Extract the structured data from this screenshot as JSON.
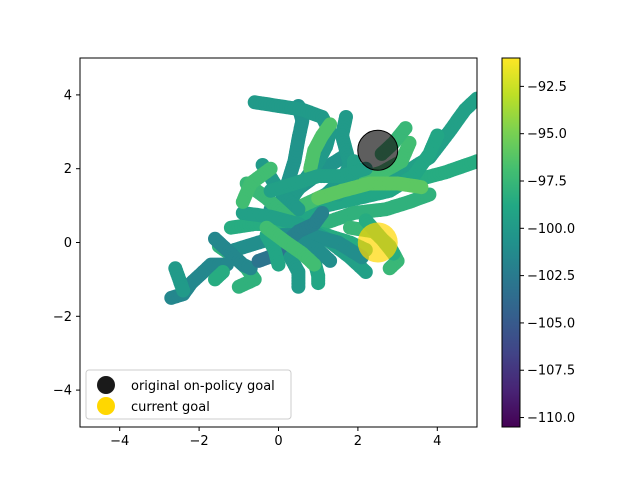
{
  "chart_data": {
    "type": "scatter",
    "xlim": [
      -5,
      5
    ],
    "ylim": [
      -5,
      5
    ],
    "x_ticks": [
      -4,
      -2,
      0,
      2,
      4
    ],
    "x_tick_labels": [
      "−4",
      "−2",
      "0",
      "2",
      "4"
    ],
    "y_ticks": [
      -4,
      -2,
      0,
      2,
      4
    ],
    "y_tick_labels": [
      "−4",
      "−2",
      "0",
      "2",
      "4"
    ],
    "grid": false,
    "colormap": "viridis",
    "colorbar": {
      "range": [
        -110.5,
        -91.0
      ],
      "ticks": [
        -92.5,
        -95.0,
        -97.5,
        -100.0,
        -102.5,
        -105.0,
        -107.5,
        -110.0
      ],
      "tick_labels": [
        "−92.5",
        "−95.0",
        "−97.5",
        "−100.0",
        "−102.5",
        "−105.0",
        "−107.5",
        "−110.0"
      ]
    },
    "trajectories": [
      {
        "value": -99.5,
        "points": [
          [
            0.2,
            0.4
          ],
          [
            0.8,
            0.8
          ],
          [
            1.4,
            1.2
          ],
          [
            2.0,
            1.5
          ],
          [
            2.6,
            1.7
          ],
          [
            3.2,
            1.9
          ],
          [
            3.8,
            2.3
          ],
          [
            4.3,
            3.0
          ],
          [
            4.7,
            3.6
          ],
          [
            5.0,
            3.9
          ]
        ]
      },
      {
        "value": -98.5,
        "points": [
          [
            0.0,
            0.3
          ],
          [
            0.7,
            0.7
          ],
          [
            1.3,
            1.1
          ],
          [
            2.0,
            1.3
          ],
          [
            2.8,
            1.5
          ],
          [
            3.5,
            1.7
          ],
          [
            4.2,
            1.9
          ],
          [
            5.0,
            2.2
          ]
        ]
      },
      {
        "value": -99.0,
        "points": [
          [
            0.5,
            0.6
          ],
          [
            1.2,
            1.0
          ],
          [
            2.0,
            1.2
          ],
          [
            2.8,
            1.4
          ],
          [
            3.4,
            1.8
          ],
          [
            3.8,
            2.4
          ],
          [
            4.0,
            2.9
          ]
        ]
      },
      {
        "value": -98.0,
        "points": [
          [
            0.3,
            0.2
          ],
          [
            1.1,
            0.5
          ],
          [
            1.9,
            0.8
          ],
          [
            2.7,
            0.9
          ],
          [
            3.3,
            1.1
          ],
          [
            3.8,
            1.3
          ]
        ]
      },
      {
        "value": -97.0,
        "points": [
          [
            0.4,
            0.9
          ],
          [
            1.2,
            1.3
          ],
          [
            2.0,
            1.7
          ],
          [
            2.6,
            1.9
          ],
          [
            3.1,
            2.2
          ],
          [
            3.3,
            2.7
          ]
        ]
      },
      {
        "value": -100.5,
        "points": [
          [
            -0.2,
            0.9
          ],
          [
            0.3,
            1.3
          ],
          [
            0.8,
            1.7
          ],
          [
            1.3,
            2.1
          ],
          [
            1.6,
            2.3
          ]
        ]
      },
      {
        "value": -100.5,
        "points": [
          [
            0.0,
            0.8
          ],
          [
            0.2,
            1.5
          ],
          [
            0.4,
            2.2
          ],
          [
            0.5,
            2.8
          ],
          [
            0.6,
            3.3
          ],
          [
            0.5,
            3.7
          ]
        ]
      },
      {
        "value": -100.0,
        "points": [
          [
            -0.6,
            3.8
          ],
          [
            0.0,
            3.7
          ],
          [
            0.6,
            3.6
          ],
          [
            1.1,
            3.4
          ],
          [
            1.3,
            3.0
          ],
          [
            1.2,
            2.6
          ],
          [
            1.0,
            2.2
          ],
          [
            0.6,
            1.6
          ],
          [
            0.2,
            1.0
          ],
          [
            -0.1,
            0.6
          ]
        ]
      },
      {
        "value": -100.0,
        "points": [
          [
            1.7,
            3.4
          ],
          [
            1.6,
            2.9
          ],
          [
            1.7,
            2.5
          ],
          [
            1.8,
            2.1
          ],
          [
            1.6,
            1.7
          ],
          [
            1.2,
            1.3
          ]
        ]
      },
      {
        "value": -99.5,
        "points": [
          [
            1.9,
            2.2
          ],
          [
            1.9,
            1.9
          ],
          [
            1.8,
            1.6
          ],
          [
            1.5,
            1.3
          ]
        ]
      },
      {
        "value": -100.0,
        "points": [
          [
            -0.4,
            2.1
          ],
          [
            -0.1,
            1.6
          ],
          [
            0.2,
            1.2
          ],
          [
            0.5,
            0.9
          ]
        ]
      },
      {
        "value": -97.5,
        "points": [
          [
            -0.8,
            1.6
          ],
          [
            -0.3,
            1.2
          ],
          [
            0.1,
            0.8
          ],
          [
            0.4,
            0.5
          ]
        ]
      },
      {
        "value": -98.5,
        "points": [
          [
            -1.2,
            0.4
          ],
          [
            -0.6,
            0.5
          ],
          [
            0.0,
            0.5
          ],
          [
            0.6,
            0.4
          ],
          [
            1.2,
            0.2
          ],
          [
            1.8,
            0.0
          ],
          [
            2.2,
            -0.2
          ]
        ]
      },
      {
        "value": -99.5,
        "points": [
          [
            -0.9,
            0.8
          ],
          [
            -0.2,
            0.7
          ],
          [
            0.5,
            0.5
          ],
          [
            1.2,
            0.1
          ],
          [
            1.8,
            -0.4
          ],
          [
            2.2,
            -0.8
          ]
        ]
      },
      {
        "value": -101.0,
        "points": [
          [
            -1.1,
            -0.2
          ],
          [
            -0.5,
            0.0
          ],
          [
            0.1,
            0.2
          ],
          [
            0.8,
            0.2
          ],
          [
            1.5,
            0.0
          ],
          [
            2.1,
            -0.4
          ]
        ]
      },
      {
        "value": -97.5,
        "points": [
          [
            1.8,
            0.4
          ],
          [
            2.4,
            0.3
          ],
          [
            2.8,
            -0.1
          ],
          [
            3.0,
            -0.5
          ],
          [
            2.8,
            -0.7
          ]
        ]
      },
      {
        "value": -98.5,
        "points": [
          [
            2.2,
            0.6
          ],
          [
            2.6,
            0.1
          ],
          [
            2.9,
            -0.3
          ]
        ]
      },
      {
        "value": -98.0,
        "points": [
          [
            -1.5,
            -0.1
          ],
          [
            -1.1,
            -0.4
          ],
          [
            -0.8,
            -0.7
          ],
          [
            -0.6,
            -1.0
          ],
          [
            -1.0,
            -1.2
          ]
        ]
      },
      {
        "value": -101.5,
        "points": [
          [
            -1.6,
            0.1
          ],
          [
            -1.2,
            -0.3
          ],
          [
            -0.9,
            -0.6
          ],
          [
            -0.7,
            -0.7
          ]
        ]
      },
      {
        "value": -103.0,
        "points": [
          [
            -0.5,
            -0.5
          ],
          [
            0.0,
            -0.3
          ],
          [
            0.4,
            -0.1
          ],
          [
            0.8,
            -0.3
          ]
        ]
      },
      {
        "value": -100.0,
        "points": [
          [
            0.3,
            -0.4
          ],
          [
            0.5,
            -0.8
          ],
          [
            0.5,
            -1.2
          ]
        ]
      },
      {
        "value": -99.0,
        "points": [
          [
            0.9,
            -0.5
          ],
          [
            1.0,
            -0.9
          ],
          [
            1.0,
            -1.1
          ]
        ]
      },
      {
        "value": -101.0,
        "points": [
          [
            0.6,
            0.0
          ],
          [
            1.0,
            -0.2
          ],
          [
            1.3,
            -0.5
          ]
        ]
      },
      {
        "value": -99.0,
        "points": [
          [
            -0.3,
            0.2
          ],
          [
            -0.1,
            -0.2
          ],
          [
            0.0,
            -0.6
          ]
        ]
      },
      {
        "value": -101.5,
        "points": [
          [
            -2.7,
            -1.5
          ],
          [
            -2.4,
            -1.4
          ],
          [
            -2.2,
            -1.1
          ],
          [
            -1.9,
            -0.8
          ],
          [
            -1.7,
            -0.6
          ],
          [
            -1.3,
            -0.6
          ]
        ]
      },
      {
        "value": -100.0,
        "points": [
          [
            -2.6,
            -0.7
          ],
          [
            -2.5,
            -1.0
          ],
          [
            -2.4,
            -1.3
          ]
        ]
      },
      {
        "value": -98.5,
        "points": [
          [
            -1.4,
            -0.8
          ],
          [
            -1.6,
            -1.0
          ]
        ]
      },
      {
        "value": -97.5,
        "points": [
          [
            2.6,
            2.4
          ],
          [
            2.9,
            2.7
          ],
          [
            3.2,
            3.1
          ]
        ]
      },
      {
        "value": -96.5,
        "points": [
          [
            0.8,
            2.0
          ],
          [
            0.9,
            2.5
          ],
          [
            1.1,
            2.9
          ],
          [
            1.3,
            3.2
          ]
        ]
      },
      {
        "value": -97.0,
        "points": [
          [
            -0.2,
            2.0
          ],
          [
            -0.7,
            1.6
          ],
          [
            -0.9,
            1.1
          ]
        ]
      },
      {
        "value": -102.0,
        "points": [
          [
            0.2,
            0.0
          ],
          [
            0.5,
            0.3
          ],
          [
            0.9,
            0.5
          ],
          [
            1.1,
            0.8
          ]
        ]
      },
      {
        "value": -99.5,
        "points": [
          [
            -0.2,
            1.4
          ],
          [
            0.4,
            1.6
          ],
          [
            1.0,
            1.8
          ],
          [
            1.6,
            1.8
          ],
          [
            2.2,
            2.0
          ]
        ]
      },
      {
        "value": -96.0,
        "points": [
          [
            1.0,
            1.2
          ],
          [
            1.6,
            1.4
          ],
          [
            2.3,
            1.6
          ],
          [
            3.0,
            1.6
          ],
          [
            3.6,
            1.5
          ]
        ]
      },
      {
        "value": -97.0,
        "points": [
          [
            -0.3,
            0.4
          ],
          [
            0.2,
            0.0
          ],
          [
            0.6,
            -0.3
          ],
          [
            0.9,
            -0.6
          ]
        ]
      }
    ],
    "goals": [
      {
        "label": "original on-policy goal",
        "x": 2.5,
        "y": 2.5,
        "color": "#1a1a1a",
        "opacity": 0.7
      },
      {
        "label": "current goal",
        "x": 2.5,
        "y": 0.0,
        "color": "#ffd700",
        "opacity": 0.7
      }
    ],
    "legend": {
      "placement": "lower-left",
      "entries": [
        {
          "label": "original on-policy goal",
          "color": "#1a1a1a"
        },
        {
          "label": "current goal",
          "color": "#ffd700"
        }
      ]
    }
  }
}
